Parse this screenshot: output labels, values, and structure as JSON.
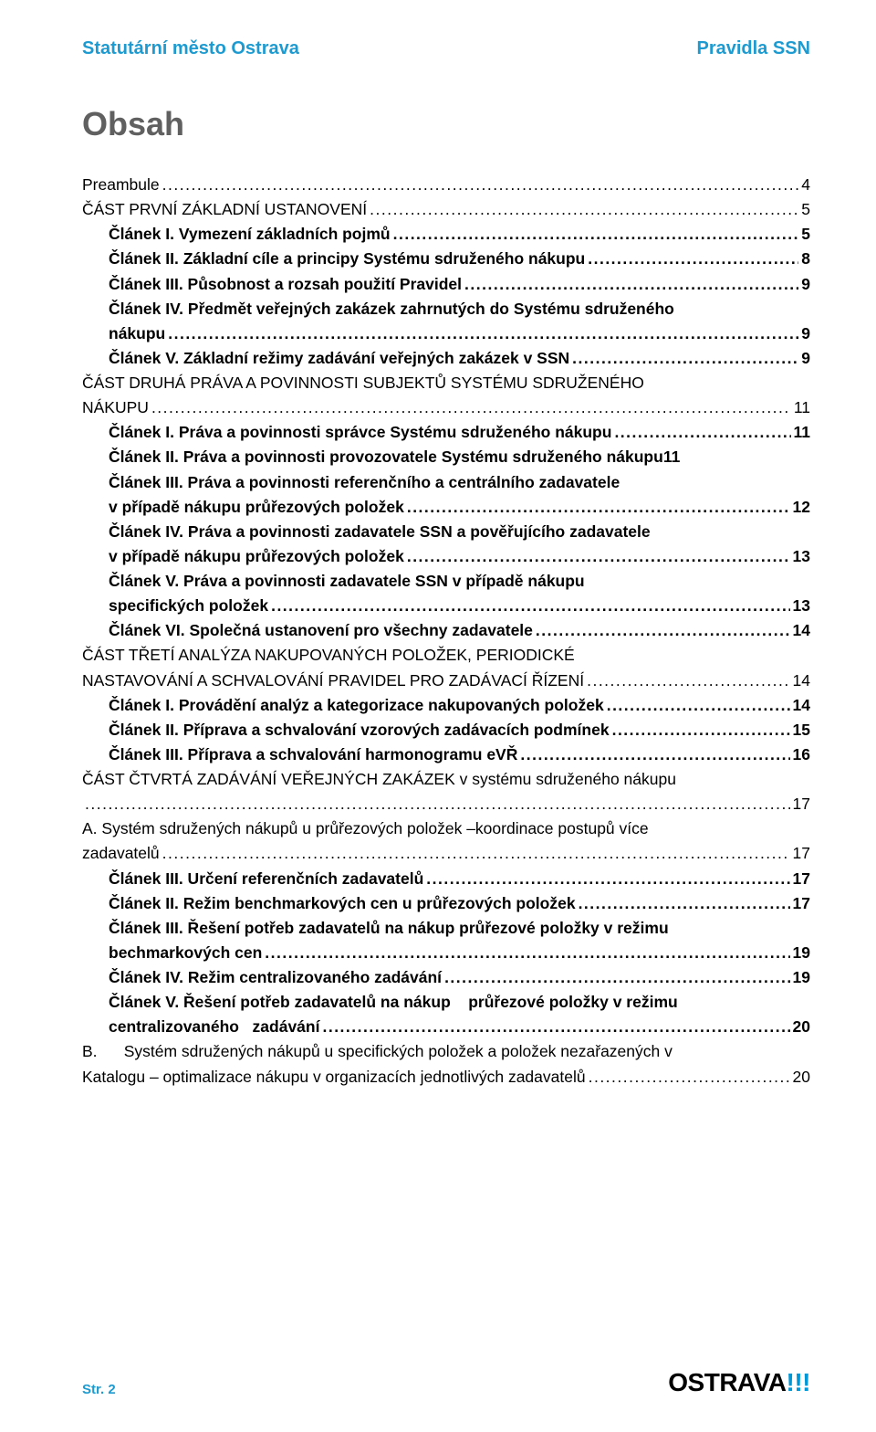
{
  "header": {
    "left": "Statutární město Ostrava",
    "right": "Pravidla SSN"
  },
  "title": "Obsah",
  "colors": {
    "accent": "#1d9bd1",
    "titleGray": "#606060",
    "logoBlue": "#0097d6"
  },
  "toc": [
    {
      "level": 0,
      "bold": false,
      "label": "Preambule",
      "page": "4"
    },
    {
      "level": 0,
      "bold": false,
      "label": "ČÁST PRVNÍ ZÁKLADNÍ USTANOVENÍ",
      "page": "5"
    },
    {
      "level": 1,
      "bold": true,
      "label": "Článek I. Vymezení základních pojmů",
      "page": "5"
    },
    {
      "level": 1,
      "bold": true,
      "label": "Článek II. Základní cíle a principy Systému sdruženého nákupu",
      "page": "8"
    },
    {
      "level": 1,
      "bold": true,
      "label": "Článek III. Působnost a rozsah použití Pravidel",
      "page": "9"
    },
    {
      "level": 1,
      "bold": true,
      "wrap": true,
      "line1": "Článek IV. Předmět veřejných zakázek zahrnutých do Systému sdruženého",
      "line2": "nákupu",
      "page": "9"
    },
    {
      "level": 1,
      "bold": true,
      "label": "Článek V. Základní režimy zadávání veřejných zakázek v SSN",
      "page": "9"
    },
    {
      "level": 0,
      "bold": false,
      "wrap": true,
      "line1": "ČÁST DRUHÁ PRÁVA A POVINNOSTI SUBJEKTŮ SYSTÉMU SDRUŽENÉHO",
      "line2": "NÁKUPU",
      "page": "11"
    },
    {
      "level": 1,
      "bold": true,
      "label": "Článek I. Práva a povinnosti správce Systému sdruženého nákupu",
      "page": "11"
    },
    {
      "level": 1,
      "bold": true,
      "nodots": true,
      "label": "Článek II. Práva a povinnosti provozovatele Systému sdruženého nákupu",
      "page": "11"
    },
    {
      "level": 1,
      "bold": true,
      "wrap": true,
      "line1": "Článek III. Práva a povinnosti referenčního a centrálního zadavatele",
      "line2": "v případě nákupu průřezových položek",
      "page": "12"
    },
    {
      "level": 1,
      "bold": true,
      "wrap": true,
      "line1": "Článek IV. Práva a povinnosti zadavatele SSN a pověřujícího zadavatele",
      "line2": "v případě nákupu průřezových položek",
      "page": "13"
    },
    {
      "level": 1,
      "bold": true,
      "wrap": true,
      "line1": "Článek V. Práva a povinnosti zadavatele SSN v případě nákupu",
      "line2": "specifických položek",
      "page": "13"
    },
    {
      "level": 1,
      "bold": true,
      "label": "Článek VI. Společná ustanovení pro všechny zadavatele",
      "page": "14"
    },
    {
      "level": 0,
      "bold": false,
      "wrap": true,
      "line1": "ČÁST TŘETÍ ANALÝZA NAKUPOVANÝCH POLOŽEK, PERIODICKÉ",
      "line2": "NASTAVOVÁNÍ A SCHVALOVÁNÍ PRAVIDEL PRO ZADÁVACÍ ŘÍZENÍ",
      "page": "14"
    },
    {
      "level": 1,
      "bold": true,
      "label": "Článek I. Provádění analýz a kategorizace nakupovaných položek",
      "page": "14"
    },
    {
      "level": 1,
      "bold": true,
      "label": "Článek II. Příprava a schvalování vzorových zadávacích podmínek",
      "page": "15"
    },
    {
      "level": 1,
      "bold": true,
      "label": "Článek III. Příprava a schvalování harmonogramu eVŘ",
      "page": "16"
    },
    {
      "level": 0,
      "bold": false,
      "wrap": true,
      "line1": "ČÁST ČTVRTÁ ZADÁVÁNÍ VEŘEJNÝCH ZAKÁZEK v systému sdruženého nákupu",
      "line2": "",
      "page": "17"
    },
    {
      "level": 0,
      "bold": false,
      "wrap": true,
      "line1": "A. Systém sdružených nákupů u průřezových položek –koordinace postupů více",
      "line2": "zadavatelů",
      "page": "17"
    },
    {
      "level": 1,
      "bold": true,
      "label": "Článek III. Určení referenčních zadavatelů",
      "page": "17"
    },
    {
      "level": 1,
      "bold": true,
      "label": "Článek II. Režim benchmarkových cen u průřezových položek",
      "page": "17"
    },
    {
      "level": 1,
      "bold": true,
      "wrap": true,
      "line1": "Článek III. Řešení potřeb zadavatelů na nákup průřezové položky v režimu",
      "line2": "bechmarkových cen",
      "page": "19"
    },
    {
      "level": 1,
      "bold": true,
      "label": "Článek IV. Režim centralizovaného zadávání",
      "page": "19"
    },
    {
      "level": 1,
      "bold": true,
      "wrap": true,
      "line1": "Článek V. Řešení potřeb zadavatelů na nákup    průřezové položky v režimu",
      "line2": "centralizovaného   zadávání",
      "page": "20"
    },
    {
      "level": 0,
      "bold": false,
      "wrap": true,
      "line1": "B.      Systém sdružených nákupů u specifických položek a položek nezařazených v",
      "line2": "Katalogu – optimalizace nákupu v organizacích jednotlivých zadavatelů",
      "page": "20"
    }
  ],
  "footer": {
    "page": "Str. 2",
    "logo": "OSTRAVA"
  }
}
